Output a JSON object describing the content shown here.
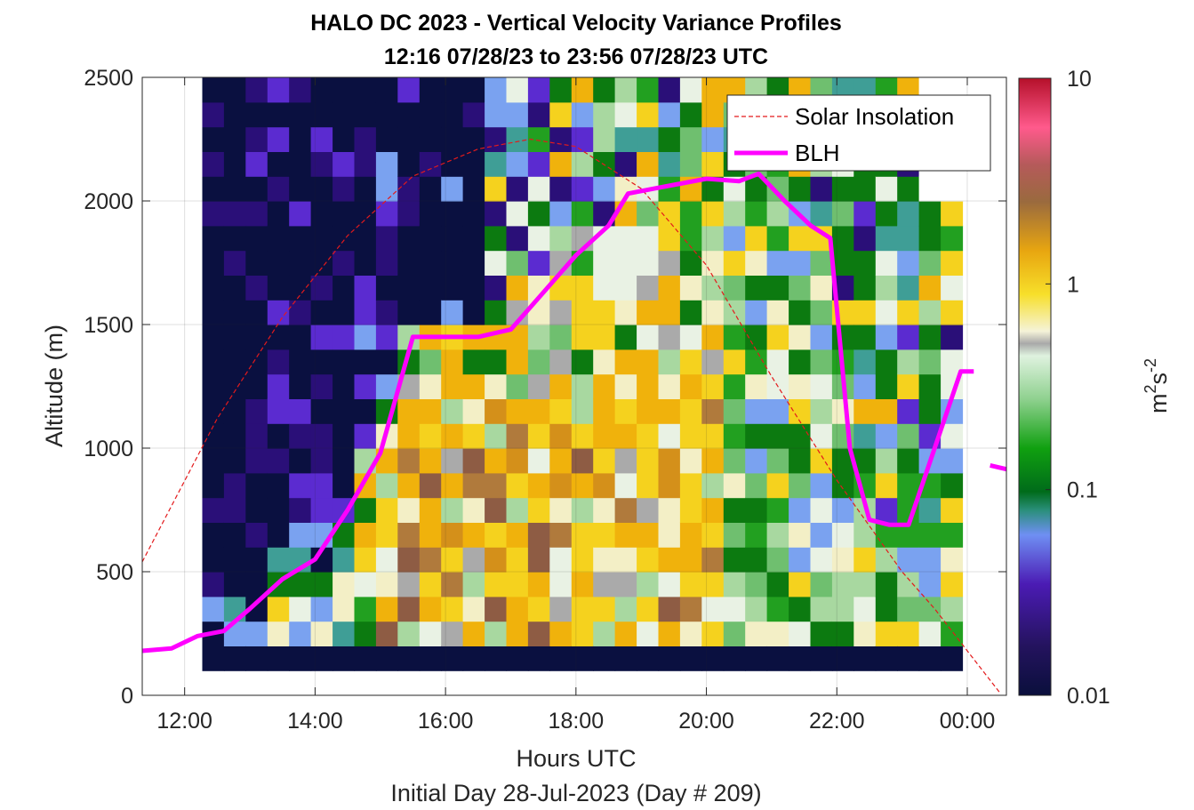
{
  "chart_data": {
    "type": "heatmap",
    "title": "HALO DC 2023 - Vertical Velocity Variance Profiles",
    "subtitle": "12:16 07/28/23 to 23:56 07/28/23  UTC",
    "xlabel": "Hours UTC",
    "footnote": "Initial Day 28-Jul-2023 (Day # 209)",
    "ylabel": "Altitude (m)",
    "xlim_hours": [
      11.35,
      24.6
    ],
    "ylim": [
      0,
      2500
    ],
    "x_ticks": [
      12,
      14,
      16,
      18,
      20,
      22,
      24
    ],
    "x_tick_labels": [
      "12:00",
      "14:00",
      "16:00",
      "18:00",
      "20:00",
      "22:00",
      "00:00"
    ],
    "y_ticks": [
      0,
      500,
      1000,
      1500,
      2000,
      2500
    ],
    "y_tick_labels": [
      "0",
      "500",
      "1000",
      "1500",
      "2000",
      "2500"
    ],
    "grid": true,
    "colorbar": {
      "scale": "log",
      "range": [
        0.01,
        10
      ],
      "ticks": [
        0.01,
        0.1,
        1,
        10
      ],
      "tick_labels": [
        "0.01",
        "0.1",
        "1",
        "10"
      ],
      "label_base": "m",
      "label_exp1": "2",
      "label_mid": "s",
      "label_exp2": "-2"
    },
    "heatmap": {
      "x_start_hour": 12.27,
      "x_end_hour": 23.93,
      "bin_hours": 0.333,
      "bottom_m": 100,
      "top_m": 2500,
      "bin_m": 100
    },
    "series": [
      {
        "name": "Solar Insolation",
        "style": "dashed",
        "color": "#e31a1c",
        "x": [
          11.35,
          12.5,
          13.5,
          14.5,
          15.5,
          16.5,
          17.3,
          18.0,
          19.0,
          20.0,
          21.0,
          22.0,
          23.0,
          23.5,
          24.0,
          24.5
        ],
        "y": [
          540,
          1120,
          1530,
          1860,
          2100,
          2210,
          2250,
          2220,
          2050,
          1740,
          1290,
          870,
          500,
          350,
          180,
          10
        ]
      },
      {
        "name": "BLH",
        "style": "solid",
        "color": "#ff00ff",
        "x": [
          11.35,
          11.8,
          12.2,
          12.6,
          13.0,
          13.5,
          14.0,
          14.5,
          15.0,
          15.5,
          16.0,
          16.5,
          17.0,
          17.5,
          18.0,
          18.5,
          18.8,
          19.2,
          20.0,
          20.5,
          20.8,
          21.2,
          21.6,
          21.9,
          22.2,
          22.5,
          22.8,
          23.1,
          23.5,
          23.9,
          24.1
        ],
        "y": [
          180,
          190,
          240,
          260,
          350,
          470,
          550,
          750,
          980,
          1450,
          1450,
          1450,
          1480,
          1630,
          1780,
          1900,
          2030,
          2050,
          2090,
          2080,
          2110,
          2000,
          1900,
          1850,
          1000,
          710,
          690,
          690,
          1000,
          1310,
          1310
        ]
      }
    ],
    "legend": {
      "position": "top-right",
      "entries": [
        "Solar Insolation",
        "BLH"
      ]
    }
  }
}
